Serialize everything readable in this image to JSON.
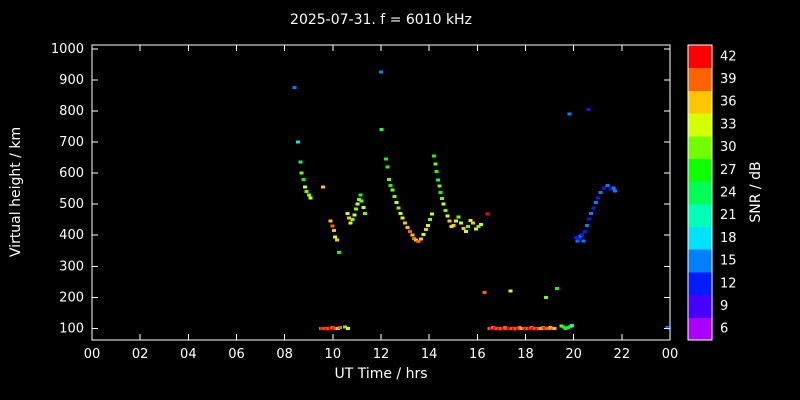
{
  "chart_data": {
    "type": "scatter",
    "title": "2025-07-31. f = 6010 kHz",
    "xlabel": "UT Time / hrs",
    "ylabel": "Virtual height / km",
    "x_range": [
      0,
      24
    ],
    "y_range": [
      62.5,
      1012.5
    ],
    "x_ticks": [
      0,
      2,
      4,
      6,
      8,
      10,
      12,
      14,
      16,
      18,
      20,
      22,
      24
    ],
    "x_tick_labels": [
      "00",
      "02",
      "04",
      "06",
      "08",
      "10",
      "12",
      "14",
      "16",
      "18",
      "20",
      "22",
      "00"
    ],
    "y_ticks": [
      100,
      200,
      300,
      400,
      500,
      600,
      700,
      800,
      900,
      1000
    ],
    "background": "#000000",
    "axis_color": "#ffffff",
    "grid": false,
    "colorbar": {
      "label": "SNR / dB",
      "range": [
        4.5,
        43.5
      ],
      "bands": 13,
      "ticks": [
        6,
        9,
        12,
        15,
        18,
        21,
        24,
        27,
        30,
        33,
        36,
        39,
        42
      ]
    },
    "points": [
      [
        8.4,
        875,
        15
      ],
      [
        8.55,
        700,
        18
      ],
      [
        8.65,
        635,
        24
      ],
      [
        8.7,
        600,
        30
      ],
      [
        8.78,
        580,
        27
      ],
      [
        8.84,
        555,
        33
      ],
      [
        8.9,
        540,
        30
      ],
      [
        9.0,
        530,
        30
      ],
      [
        9.08,
        520,
        33
      ],
      [
        9.6,
        555,
        36
      ],
      [
        9.9,
        445,
        36
      ],
      [
        9.98,
        430,
        39
      ],
      [
        10.05,
        415,
        36
      ],
      [
        10.1,
        395,
        33
      ],
      [
        10.18,
        385,
        36
      ],
      [
        10.25,
        345,
        27
      ],
      [
        9.5,
        100,
        39
      ],
      [
        9.58,
        100,
        42
      ],
      [
        9.66,
        100,
        39
      ],
      [
        9.74,
        98,
        42
      ],
      [
        9.82,
        100,
        39
      ],
      [
        9.9,
        100,
        42
      ],
      [
        9.98,
        102,
        39
      ],
      [
        10.06,
        100,
        42
      ],
      [
        10.14,
        100,
        39
      ],
      [
        10.22,
        100,
        36
      ],
      [
        10.3,
        102,
        39
      ],
      [
        10.5,
        105,
        30
      ],
      [
        10.62,
        100,
        33
      ],
      [
        10.6,
        470,
        33
      ],
      [
        10.68,
        455,
        36
      ],
      [
        10.74,
        440,
        33
      ],
      [
        10.82,
        450,
        30
      ],
      [
        10.9,
        465,
        33
      ],
      [
        10.96,
        485,
        30
      ],
      [
        11.02,
        500,
        33
      ],
      [
        11.08,
        515,
        30
      ],
      [
        11.14,
        530,
        27
      ],
      [
        11.2,
        510,
        30
      ],
      [
        11.28,
        490,
        33
      ],
      [
        11.34,
        470,
        30
      ],
      [
        12.0,
        925,
        15
      ],
      [
        12.02,
        740,
        24
      ],
      [
        12.2,
        645,
        27
      ],
      [
        12.26,
        620,
        27
      ],
      [
        12.34,
        580,
        30
      ],
      [
        12.4,
        560,
        27
      ],
      [
        12.48,
        545,
        30
      ],
      [
        12.56,
        525,
        30
      ],
      [
        12.64,
        505,
        33
      ],
      [
        12.72,
        488,
        30
      ],
      [
        12.8,
        470,
        33
      ],
      [
        12.9,
        455,
        33
      ],
      [
        13.0,
        440,
        36
      ],
      [
        13.1,
        425,
        36
      ],
      [
        13.2,
        412,
        39
      ],
      [
        13.3,
        400,
        36
      ],
      [
        13.38,
        390,
        39
      ],
      [
        13.46,
        385,
        36
      ],
      [
        13.56,
        380,
        39
      ],
      [
        13.66,
        388,
        36
      ],
      [
        13.76,
        402,
        33
      ],
      [
        13.86,
        418,
        36
      ],
      [
        13.96,
        432,
        33
      ],
      [
        14.04,
        450,
        30
      ],
      [
        14.12,
        468,
        33
      ],
      [
        14.2,
        655,
        27
      ],
      [
        14.26,
        630,
        30
      ],
      [
        14.3,
        605,
        27
      ],
      [
        14.36,
        578,
        24
      ],
      [
        14.42,
        558,
        30
      ],
      [
        14.48,
        538,
        27
      ],
      [
        14.54,
        518,
        30
      ],
      [
        14.6,
        500,
        33
      ],
      [
        14.68,
        480,
        30
      ],
      [
        14.76,
        462,
        33
      ],
      [
        14.84,
        445,
        36
      ],
      [
        14.92,
        428,
        33
      ],
      [
        15.02,
        432,
        36
      ],
      [
        15.12,
        445,
        33
      ],
      [
        15.22,
        458,
        30
      ],
      [
        15.32,
        440,
        33
      ],
      [
        15.42,
        422,
        36
      ],
      [
        15.52,
        412,
        33
      ],
      [
        15.62,
        428,
        30
      ],
      [
        15.72,
        448,
        33
      ],
      [
        15.82,
        440,
        36
      ],
      [
        15.95,
        420,
        33
      ],
      [
        16.05,
        428,
        30
      ],
      [
        16.15,
        435,
        33
      ],
      [
        16.42,
        468,
        42
      ],
      [
        16.3,
        215,
        39
      ],
      [
        16.5,
        100,
        39
      ],
      [
        16.58,
        100,
        42
      ],
      [
        16.66,
        102,
        39
      ],
      [
        16.74,
        100,
        42
      ],
      [
        16.82,
        100,
        39
      ],
      [
        16.9,
        98,
        42
      ],
      [
        16.98,
        100,
        39
      ],
      [
        17.06,
        100,
        42
      ],
      [
        17.14,
        102,
        39
      ],
      [
        17.22,
        100,
        39
      ],
      [
        17.3,
        100,
        42
      ],
      [
        17.44,
        100,
        39
      ],
      [
        17.52,
        98,
        42
      ],
      [
        17.6,
        100,
        39
      ],
      [
        17.68,
        100,
        42
      ],
      [
        17.76,
        102,
        39
      ],
      [
        17.84,
        100,
        36
      ],
      [
        17.92,
        100,
        39
      ],
      [
        18.0,
        98,
        42
      ],
      [
        18.08,
        100,
        39
      ],
      [
        18.16,
        100,
        42
      ],
      [
        18.24,
        102,
        39
      ],
      [
        18.32,
        100,
        42
      ],
      [
        18.4,
        100,
        39
      ],
      [
        18.48,
        98,
        42
      ],
      [
        18.56,
        100,
        39
      ],
      [
        18.64,
        100,
        36
      ],
      [
        18.72,
        102,
        39
      ],
      [
        18.8,
        100,
        42
      ],
      [
        18.88,
        100,
        39
      ],
      [
        18.96,
        100,
        39
      ],
      [
        19.04,
        102,
        36
      ],
      [
        19.12,
        100,
        39
      ],
      [
        19.2,
        100,
        36
      ],
      [
        17.38,
        220,
        33
      ],
      [
        18.85,
        200,
        30
      ],
      [
        19.3,
        228,
        27
      ],
      [
        19.5,
        108,
        30
      ],
      [
        19.58,
        104,
        27
      ],
      [
        19.66,
        100,
        24
      ],
      [
        19.76,
        102,
        27
      ],
      [
        19.86,
        106,
        24
      ],
      [
        19.94,
        110,
        21
      ],
      [
        19.82,
        790,
        15
      ],
      [
        20.62,
        805,
        12
      ],
      [
        20.1,
        392,
        12
      ],
      [
        20.16,
        382,
        15
      ],
      [
        20.22,
        388,
        12
      ],
      [
        20.28,
        398,
        15
      ],
      [
        20.34,
        402,
        12
      ],
      [
        20.4,
        382,
        15
      ],
      [
        20.48,
        412,
        12
      ],
      [
        20.56,
        432,
        15
      ],
      [
        20.64,
        452,
        12
      ],
      [
        20.72,
        470,
        15
      ],
      [
        20.82,
        488,
        12
      ],
      [
        20.92,
        505,
        15
      ],
      [
        21.02,
        520,
        12
      ],
      [
        21.12,
        538,
        15
      ],
      [
        21.25,
        552,
        12
      ],
      [
        21.4,
        560,
        15
      ],
      [
        21.52,
        548,
        12
      ],
      [
        21.66,
        552,
        15
      ],
      [
        21.72,
        542,
        15
      ],
      [
        23.9,
        103,
        15
      ],
      [
        23.98,
        100,
        12
      ]
    ]
  }
}
